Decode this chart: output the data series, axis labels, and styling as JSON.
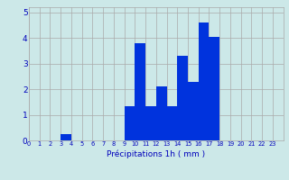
{
  "hours": [
    0,
    1,
    2,
    3,
    4,
    5,
    6,
    7,
    8,
    9,
    10,
    11,
    12,
    13,
    14,
    15,
    16,
    17,
    18,
    19,
    20,
    21,
    22,
    23
  ],
  "values": [
    0,
    0,
    0,
    0.25,
    0,
    0,
    0,
    0,
    0,
    1.35,
    3.8,
    1.35,
    2.1,
    1.35,
    3.3,
    2.3,
    4.6,
    4.05,
    0,
    0,
    0,
    0,
    0,
    0
  ],
  "bar_color": "#0033dd",
  "background_color": "#cce8e8",
  "grid_color": "#aaaaaa",
  "xlabel": "Précipitations 1h ( mm )",
  "xlabel_color": "#0000bb",
  "tick_color": "#0000bb",
  "ylim": [
    0,
    5.2
  ],
  "yticks": [
    0,
    1,
    2,
    3,
    4,
    5
  ],
  "bar_width": 1.0
}
